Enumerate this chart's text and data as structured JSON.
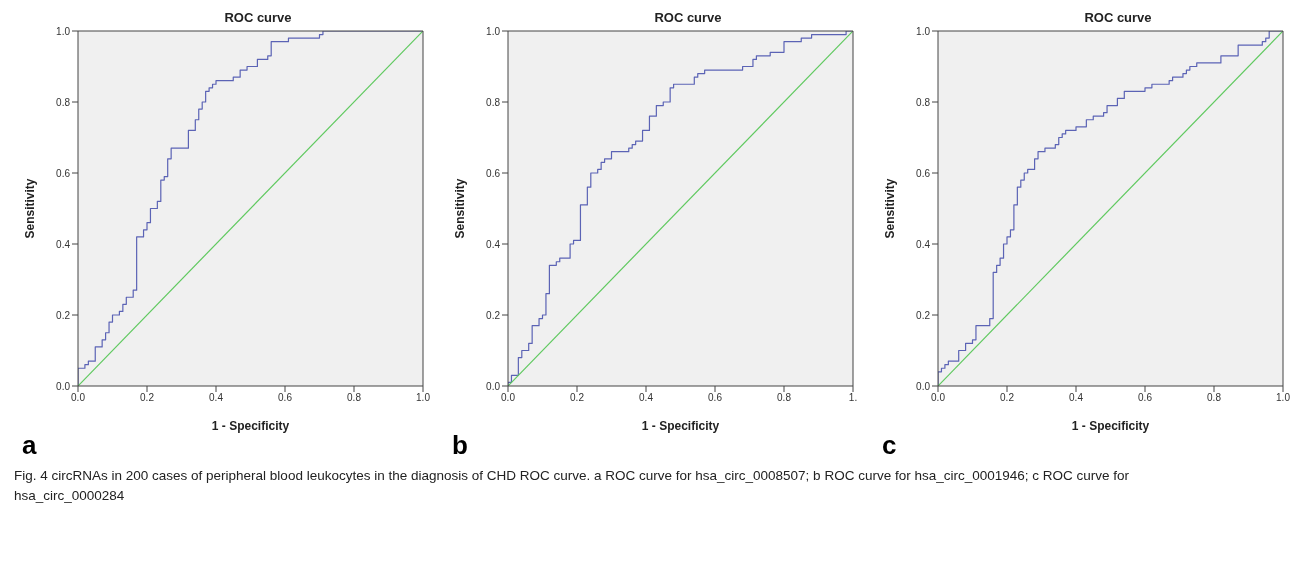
{
  "chart_data": [
    {
      "type": "step",
      "title": "ROC curve",
      "xlabel": "1 - Specificity",
      "ylabel": "Sensitivity",
      "xlim": [
        0,
        1
      ],
      "ylim": [
        0,
        1
      ],
      "xticks": [
        {
          "value": 0,
          "label": "0.0"
        },
        {
          "value": 0.2,
          "label": "0.2"
        },
        {
          "value": 0.4,
          "label": "0.4"
        },
        {
          "value": 0.6,
          "label": "0.6"
        },
        {
          "value": 0.8,
          "label": "0.8"
        },
        {
          "value": 1,
          "label": "1.0"
        }
      ],
      "yticks": [
        {
          "value": 0,
          "label": "0.0"
        },
        {
          "value": 0.2,
          "label": "0.2"
        },
        {
          "value": 0.4,
          "label": "0.4"
        },
        {
          "value": 0.6,
          "label": "0.6"
        },
        {
          "value": 0.8,
          "label": "0.8"
        },
        {
          "value": 1,
          "label": "1.0"
        }
      ],
      "marker": "none",
      "series": [
        {
          "type": "step",
          "color": "#5b63b5",
          "x": [
            0,
            0,
            0.02,
            0.03,
            0.05,
            0.07,
            0.08,
            0.09,
            0.1,
            0.12,
            0.13,
            0.14,
            0.16,
            0.17,
            0.19,
            0.2,
            0.21,
            0.23,
            0.24,
            0.25,
            0.26,
            0.27,
            0.32,
            0.34,
            0.35,
            0.36,
            0.37,
            0.38,
            0.39,
            0.4,
            0.45,
            0.47,
            0.49,
            0.52,
            0.55,
            0.56,
            0.61,
            0.7,
            0.71,
            1
          ],
          "values": [
            0,
            0.05,
            0.06,
            0.07,
            0.11,
            0.13,
            0.15,
            0.18,
            0.2,
            0.21,
            0.23,
            0.25,
            0.27,
            0.42,
            0.44,
            0.46,
            0.5,
            0.52,
            0.58,
            0.59,
            0.64,
            0.67,
            0.72,
            0.75,
            0.78,
            0.8,
            0.83,
            0.84,
            0.85,
            0.86,
            0.87,
            0.89,
            0.9,
            0.92,
            0.93,
            0.97,
            0.98,
            0.99,
            1,
            1
          ]
        },
        {
          "type": "line",
          "color": "#5fc95f",
          "x": [
            0,
            1
          ],
          "values": [
            0,
            1
          ]
        }
      ],
      "annotations": [
        "a",
        "Fig. 4 circRNAs in 200 cases of peripheral blood leukocytes in the diagnosis of CHD ROC curve. a ROC curve for hsa_circ_0008507; b ROC curve for hsa_circ_0001946; c ROC curve for hsa_circ_0000284"
      ]
    },
    {
      "type": "step",
      "title": "ROC curve",
      "xlabel": "1 - Specificity",
      "ylabel": "Sensitivity",
      "xlim": [
        0,
        1
      ],
      "ylim": [
        0,
        1
      ],
      "xticks": [
        {
          "value": 0,
          "label": "0.0"
        },
        {
          "value": 0.2,
          "label": "0.2"
        },
        {
          "value": 0.4,
          "label": "0.4"
        },
        {
          "value": 0.6,
          "label": "0.6"
        },
        {
          "value": 0.8,
          "label": "0.8"
        },
        {
          "value": 1,
          "label": "1."
        }
      ],
      "yticks": [
        {
          "value": 0,
          "label": "0.0"
        },
        {
          "value": 0.2,
          "label": "0.2"
        },
        {
          "value": 0.4,
          "label": "0.4"
        },
        {
          "value": 0.6,
          "label": "0.6"
        },
        {
          "value": 0.8,
          "label": "0.8"
        },
        {
          "value": 1,
          "label": "1.0"
        }
      ],
      "marker": "none",
      "series": [
        {
          "type": "step",
          "color": "#5b63b5",
          "x": [
            0,
            0,
            0.01,
            0.03,
            0.04,
            0.06,
            0.07,
            0.09,
            0.1,
            0.11,
            0.12,
            0.14,
            0.15,
            0.18,
            0.19,
            0.21,
            0.23,
            0.24,
            0.26,
            0.27,
            0.28,
            0.3,
            0.35,
            0.36,
            0.37,
            0.39,
            0.41,
            0.43,
            0.45,
            0.47,
            0.48,
            0.54,
            0.55,
            0.57,
            0.68,
            0.71,
            0.72,
            0.76,
            0.8,
            0.85,
            0.88,
            0.98,
            1
          ],
          "values": [
            0,
            0.01,
            0.03,
            0.08,
            0.1,
            0.12,
            0.17,
            0.19,
            0.2,
            0.26,
            0.34,
            0.35,
            0.36,
            0.4,
            0.41,
            0.51,
            0.56,
            0.6,
            0.61,
            0.63,
            0.64,
            0.66,
            0.67,
            0.68,
            0.69,
            0.72,
            0.76,
            0.79,
            0.8,
            0.84,
            0.85,
            0.87,
            0.88,
            0.89,
            0.9,
            0.92,
            0.93,
            0.94,
            0.97,
            0.98,
            0.99,
            1,
            1
          ]
        },
        {
          "type": "line",
          "color": "#5fc95f",
          "x": [
            0,
            1
          ],
          "values": [
            0,
            1
          ]
        }
      ],
      "annotations": [
        "b"
      ]
    },
    {
      "type": "step",
      "title": "ROC curve",
      "xlabel": "1 - Specificity",
      "ylabel": "Sensitivity",
      "xlim": [
        0,
        1
      ],
      "ylim": [
        0,
        1
      ],
      "xticks": [
        {
          "value": 0,
          "label": "0.0"
        },
        {
          "value": 0.2,
          "label": "0.2"
        },
        {
          "value": 0.4,
          "label": "0.4"
        },
        {
          "value": 0.6,
          "label": "0.6"
        },
        {
          "value": 0.8,
          "label": "0.8"
        },
        {
          "value": 1,
          "label": "1.0"
        }
      ],
      "yticks": [
        {
          "value": 0,
          "label": "0.0"
        },
        {
          "value": 0.2,
          "label": "0.2"
        },
        {
          "value": 0.4,
          "label": "0.4"
        },
        {
          "value": 0.6,
          "label": "0.6"
        },
        {
          "value": 0.8,
          "label": "0.8"
        },
        {
          "value": 1,
          "label": "1.0"
        }
      ],
      "marker": "none",
      "series": [
        {
          "type": "step",
          "color": "#5b63b5",
          "x": [
            0,
            0,
            0.01,
            0.02,
            0.03,
            0.06,
            0.08,
            0.1,
            0.11,
            0.15,
            0.16,
            0.17,
            0.18,
            0.19,
            0.2,
            0.21,
            0.22,
            0.23,
            0.24,
            0.25,
            0.26,
            0.28,
            0.29,
            0.31,
            0.34,
            0.35,
            0.36,
            0.37,
            0.4,
            0.43,
            0.45,
            0.48,
            0.49,
            0.52,
            0.54,
            0.6,
            0.62,
            0.67,
            0.68,
            0.71,
            0.72,
            0.73,
            0.75,
            0.82,
            0.87,
            0.94,
            0.95,
            0.96,
            1
          ],
          "values": [
            0,
            0.04,
            0.05,
            0.06,
            0.07,
            0.1,
            0.12,
            0.13,
            0.17,
            0.19,
            0.32,
            0.34,
            0.36,
            0.4,
            0.42,
            0.44,
            0.51,
            0.56,
            0.58,
            0.6,
            0.61,
            0.64,
            0.66,
            0.67,
            0.68,
            0.7,
            0.71,
            0.72,
            0.73,
            0.75,
            0.76,
            0.77,
            0.79,
            0.81,
            0.83,
            0.84,
            0.85,
            0.86,
            0.87,
            0.88,
            0.89,
            0.9,
            0.91,
            0.93,
            0.96,
            0.97,
            0.98,
            1,
            1
          ]
        },
        {
          "type": "line",
          "color": "#5fc95f",
          "x": [
            0,
            1
          ],
          "values": [
            0,
            1
          ]
        }
      ],
      "annotations": [
        "c"
      ]
    }
  ]
}
